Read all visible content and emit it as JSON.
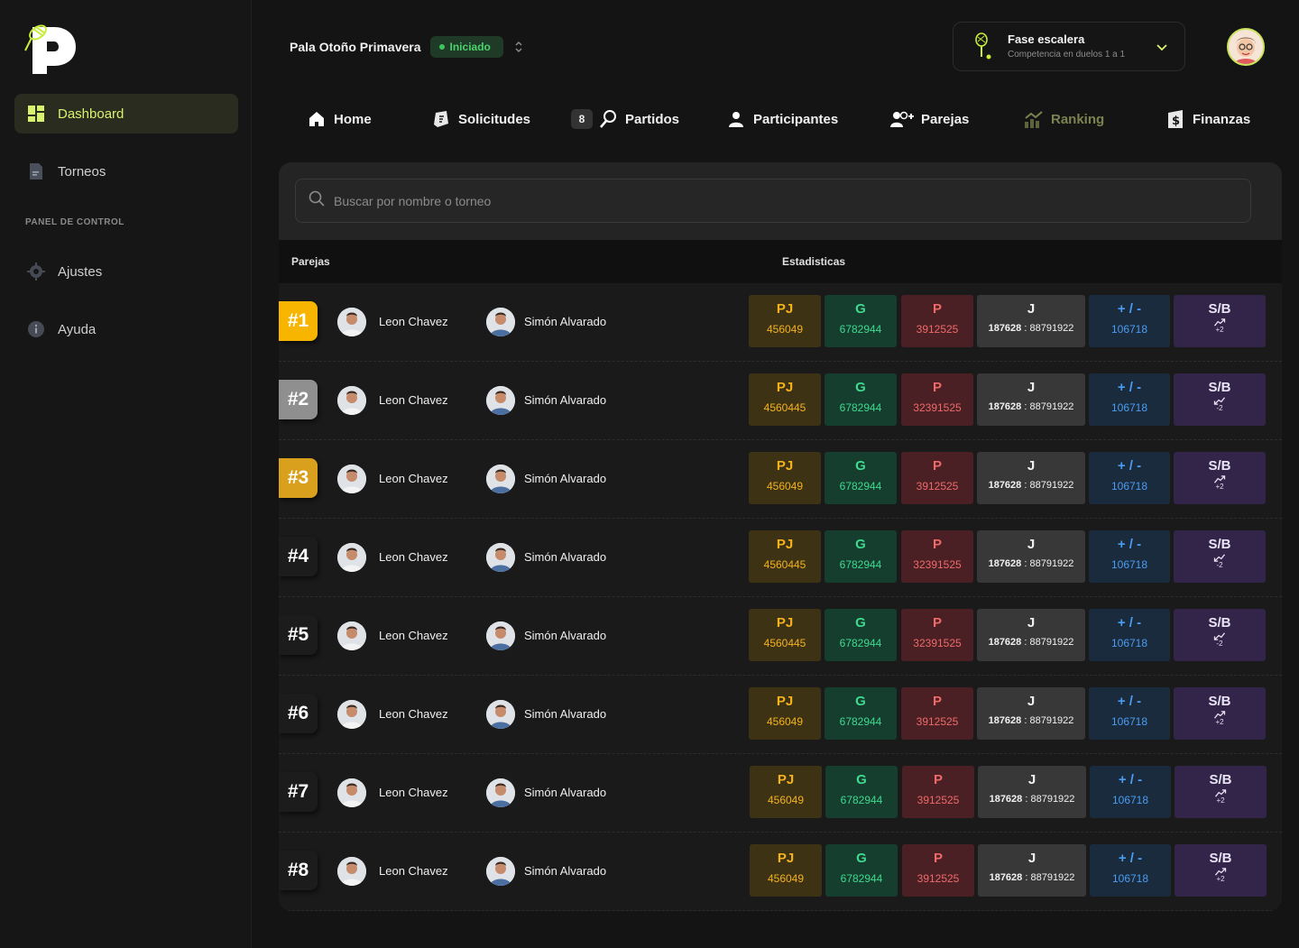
{
  "sidebar": {
    "items": [
      {
        "label": "Dashboard"
      },
      {
        "label": "Torneos"
      }
    ],
    "section_label": "PANEL DE CONTROL",
    "settings": [
      {
        "label": "Ajustes"
      },
      {
        "label": "Ayuda"
      }
    ]
  },
  "header": {
    "tournament_name": "Pala Otoño Primavera",
    "status": "Iniciado",
    "phase_title": "Fase escalera",
    "phase_subtitle": "Competencia en duelos  1 a 1"
  },
  "tabs": [
    {
      "label": "Home"
    },
    {
      "label": "Solicitudes"
    },
    {
      "label": "Partidos",
      "count": "8"
    },
    {
      "label": "Participantes"
    },
    {
      "label": "Parejas"
    },
    {
      "label": "Ranking"
    },
    {
      "label": "Finanzas"
    }
  ],
  "search": {
    "placeholder": "Buscar por nombre o torneo"
  },
  "table": {
    "headers": {
      "pairs": "Parejas",
      "stats": "Estadisticas"
    },
    "stat_labels": {
      "pj": "PJ",
      "g": "G",
      "p": "P",
      "j": "J",
      "pm": "+ / -",
      "sb": "S/B"
    },
    "rows": [
      {
        "rank": "#1",
        "player1": "Leon Chavez",
        "player2": "Simón Alvarado",
        "pj": "456049",
        "g": "6782944",
        "p": "3912525",
        "j_a": "187628",
        "j_b": "88791922",
        "pm": "106718",
        "sb": "+2",
        "sb_trend": "up"
      },
      {
        "rank": "#2",
        "player1": "Leon Chavez",
        "player2": "Simón Alvarado",
        "pj": "4560445",
        "g": "6782944",
        "p": "32391525",
        "j_a": "187628",
        "j_b": "88791922",
        "pm": "106718",
        "sb": "-2",
        "sb_trend": "down"
      },
      {
        "rank": "#3",
        "player1": "Leon Chavez",
        "player2": "Simón Alvarado",
        "pj": "456049",
        "g": "6782944",
        "p": "3912525",
        "j_a": "187628",
        "j_b": "88791922",
        "pm": "106718",
        "sb": "+2",
        "sb_trend": "up"
      },
      {
        "rank": "#4",
        "player1": "Leon Chavez",
        "player2": "Simón Alvarado",
        "pj": "4560445",
        "g": "6782944",
        "p": "32391525",
        "j_a": "187628",
        "j_b": "88791922",
        "pm": "106718",
        "sb": "-2",
        "sb_trend": "down"
      },
      {
        "rank": "#5",
        "player1": "Leon Chavez",
        "player2": "Simón Alvarado",
        "pj": "4560445",
        "g": "6782944",
        "p": "32391525",
        "j_a": "187628",
        "j_b": "88791922",
        "pm": "106718",
        "sb": "-2",
        "sb_trend": "down"
      },
      {
        "rank": "#6",
        "player1": "Leon Chavez",
        "player2": "Simón Alvarado",
        "pj": "456049",
        "g": "6782944",
        "p": "3912525",
        "j_a": "187628",
        "j_b": "88791922",
        "pm": "106718",
        "sb": "+2",
        "sb_trend": "up"
      },
      {
        "rank": "#7",
        "player1": "Leon Chavez",
        "player2": "Simón Alvarado",
        "pj": "456049",
        "g": "6782944",
        "p": "3912525",
        "j_a": "187628",
        "j_b": "88791922",
        "pm": "106718",
        "sb": "+2",
        "sb_trend": "up"
      },
      {
        "rank": "#8",
        "player1": "Leon Chavez",
        "player2": "Simón Alvarado",
        "pj": "456049",
        "g": "6782944",
        "p": "3912525",
        "j_a": "187628",
        "j_b": "88791922",
        "pm": "106718",
        "sb": "+2",
        "sb_trend": "up"
      }
    ]
  },
  "colors": {
    "accent": "#d9f26e",
    "status_green": "#49d36b",
    "gold": "#f7b500",
    "silver": "#8f8f8f",
    "bronze": "#d8a01d"
  }
}
